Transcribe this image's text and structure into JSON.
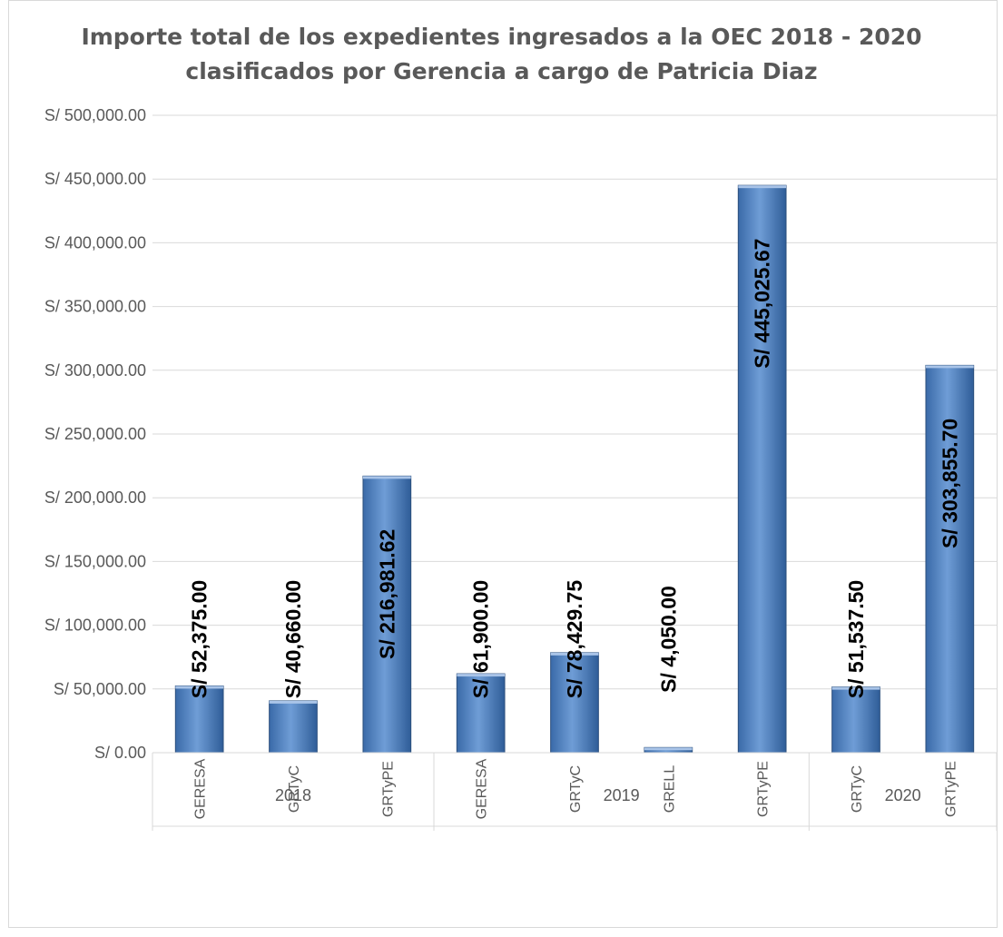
{
  "chart_data": {
    "type": "bar",
    "title_lines": [
      "Importe total de los expedientes ingresados a la OEC 2018 - 2020",
      "clasificados por Gerencia a cargo de Patricia Diaz"
    ],
    "xlabel": "",
    "ylabel": "",
    "ylim": [
      0,
      500000
    ],
    "yticks": [
      0,
      50000,
      100000,
      150000,
      200000,
      250000,
      300000,
      350000,
      400000,
      450000,
      500000
    ],
    "ytick_labels": [
      "S/ 0.00",
      "S/ 50,000.00",
      "S/ 100,000.00",
      "S/ 150,000.00",
      "S/ 200,000.00",
      "S/ 250,000.00",
      "S/ 300,000.00",
      "S/ 350,000.00",
      "S/ 400,000.00",
      "S/ 450,000.00",
      "S/ 500,000.00"
    ],
    "grid": true,
    "legend": "none",
    "bar_color": "#4f81bd",
    "groups": [
      {
        "label": "2018",
        "categories": [
          "GERESA",
          "GRTyC",
          "GRTyPE"
        ],
        "values": [
          52375.0,
          40660.0,
          216981.62
        ],
        "value_labels": [
          "S/ 52,375.00",
          "S/ 40,660.00",
          "S/ 216,981.62"
        ]
      },
      {
        "label": "2019",
        "categories": [
          "GERESA",
          "GRTyC",
          "GRELL",
          "GRTyPE"
        ],
        "values": [
          61900.0,
          78429.75,
          4050.0,
          445025.67
        ],
        "value_labels": [
          "S/ 61,900.00",
          "S/ 78,429.75",
          "S/ 4,050.00",
          "S/ 445,025.67"
        ]
      },
      {
        "label": "2020",
        "categories": [
          "GRTyC",
          "GRTyPE"
        ],
        "values": [
          51537.5,
          303855.7
        ],
        "value_labels": [
          "S/ 51,537.50",
          "S/ 303,855.70"
        ]
      }
    ]
  }
}
